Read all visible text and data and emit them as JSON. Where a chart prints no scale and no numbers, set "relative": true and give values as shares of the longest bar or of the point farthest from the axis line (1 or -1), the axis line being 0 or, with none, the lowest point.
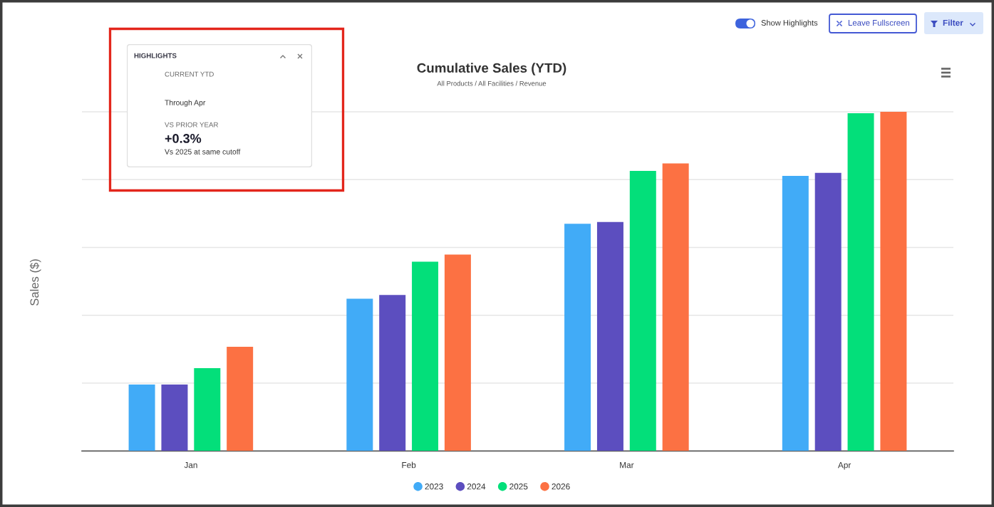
{
  "chart_data": [
    {
      "type": "bar",
      "title": "Cumulative Sales (YTD)",
      "subtitle": "All Products / All Facilities / Revenue",
      "ylabel": "Sales ($)",
      "categories": [
        "Jan",
        "Feb",
        "Mar",
        "Apr"
      ],
      "relative": true,
      "grid": "y",
      "legend": "bottom",
      "series": [
        {
          "name": "2023",
          "color": "#41abf7",
          "values": [
            0.196,
            0.449,
            0.67,
            0.811
          ]
        },
        {
          "name": "2024",
          "color": "#5c4ebf",
          "values": [
            0.196,
            0.46,
            0.675,
            0.82
          ]
        },
        {
          "name": "2025",
          "color": "#03df7a",
          "values": [
            0.244,
            0.558,
            0.826,
            0.996
          ]
        },
        {
          "name": "2026",
          "color": "#fc7143",
          "values": [
            0.307,
            0.579,
            0.848,
            1
          ]
        }
      ]
    },
    {
      "type": "other",
      "title": "HIGHLIGHTS",
      "annotations": [
        "CURRENT YTD",
        "Through Apr",
        "VS PRIOR YEAR",
        "+0.3%",
        "Vs 2025 at same cutoff"
      ]
    },
    {
      "type": "other",
      "annotations": [
        "Show Highlights",
        "Leave Fullscreen",
        "Filter"
      ]
    }
  ]
}
